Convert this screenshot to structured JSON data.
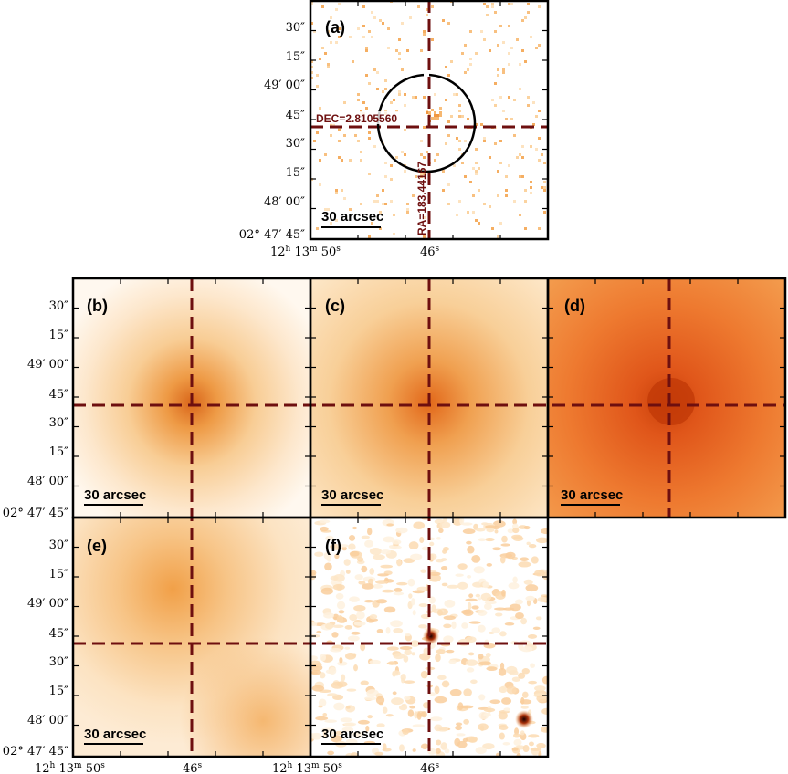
{
  "colors": {
    "cross": "#6e0f0f",
    "frame": "#000000",
    "pale": "#fff4e6",
    "mid": "#f4b058",
    "deep": "#d9500f"
  },
  "panels": [
    {
      "id": "a",
      "label": "(a)",
      "scale_label": "30 arcsec"
    },
    {
      "id": "b",
      "label": "(b)",
      "scale_label": "30 arcsec"
    },
    {
      "id": "c",
      "label": "(c)",
      "scale_label": "30 arcsec"
    },
    {
      "id": "d",
      "label": "(d)",
      "scale_label": "30 arcsec"
    },
    {
      "id": "e",
      "label": "(e)",
      "scale_label": "30 arcsec"
    },
    {
      "id": "f",
      "label": "(f)",
      "scale_label": "30 arcsec"
    }
  ],
  "annotations": {
    "dec": "DEC=2.8105560",
    "ra": "RA=183.44167"
  },
  "axes": {
    "dec_ticks": [
      "30″",
      "15″",
      "49′ 00″",
      "45″",
      "30″",
      "15″",
      "48′ 00″",
      "02° 47′ 45″"
    ],
    "ra_tick_left_main": "12",
    "ra_tick_h": "h",
    "ra_tick_mid_main": "13",
    "ra_tick_m": "m",
    "ra_tick_sec_main": " 50",
    "ra_tick_s": "s",
    "ra_tick_46": "46",
    "ra_tick_46_s": "s"
  }
}
